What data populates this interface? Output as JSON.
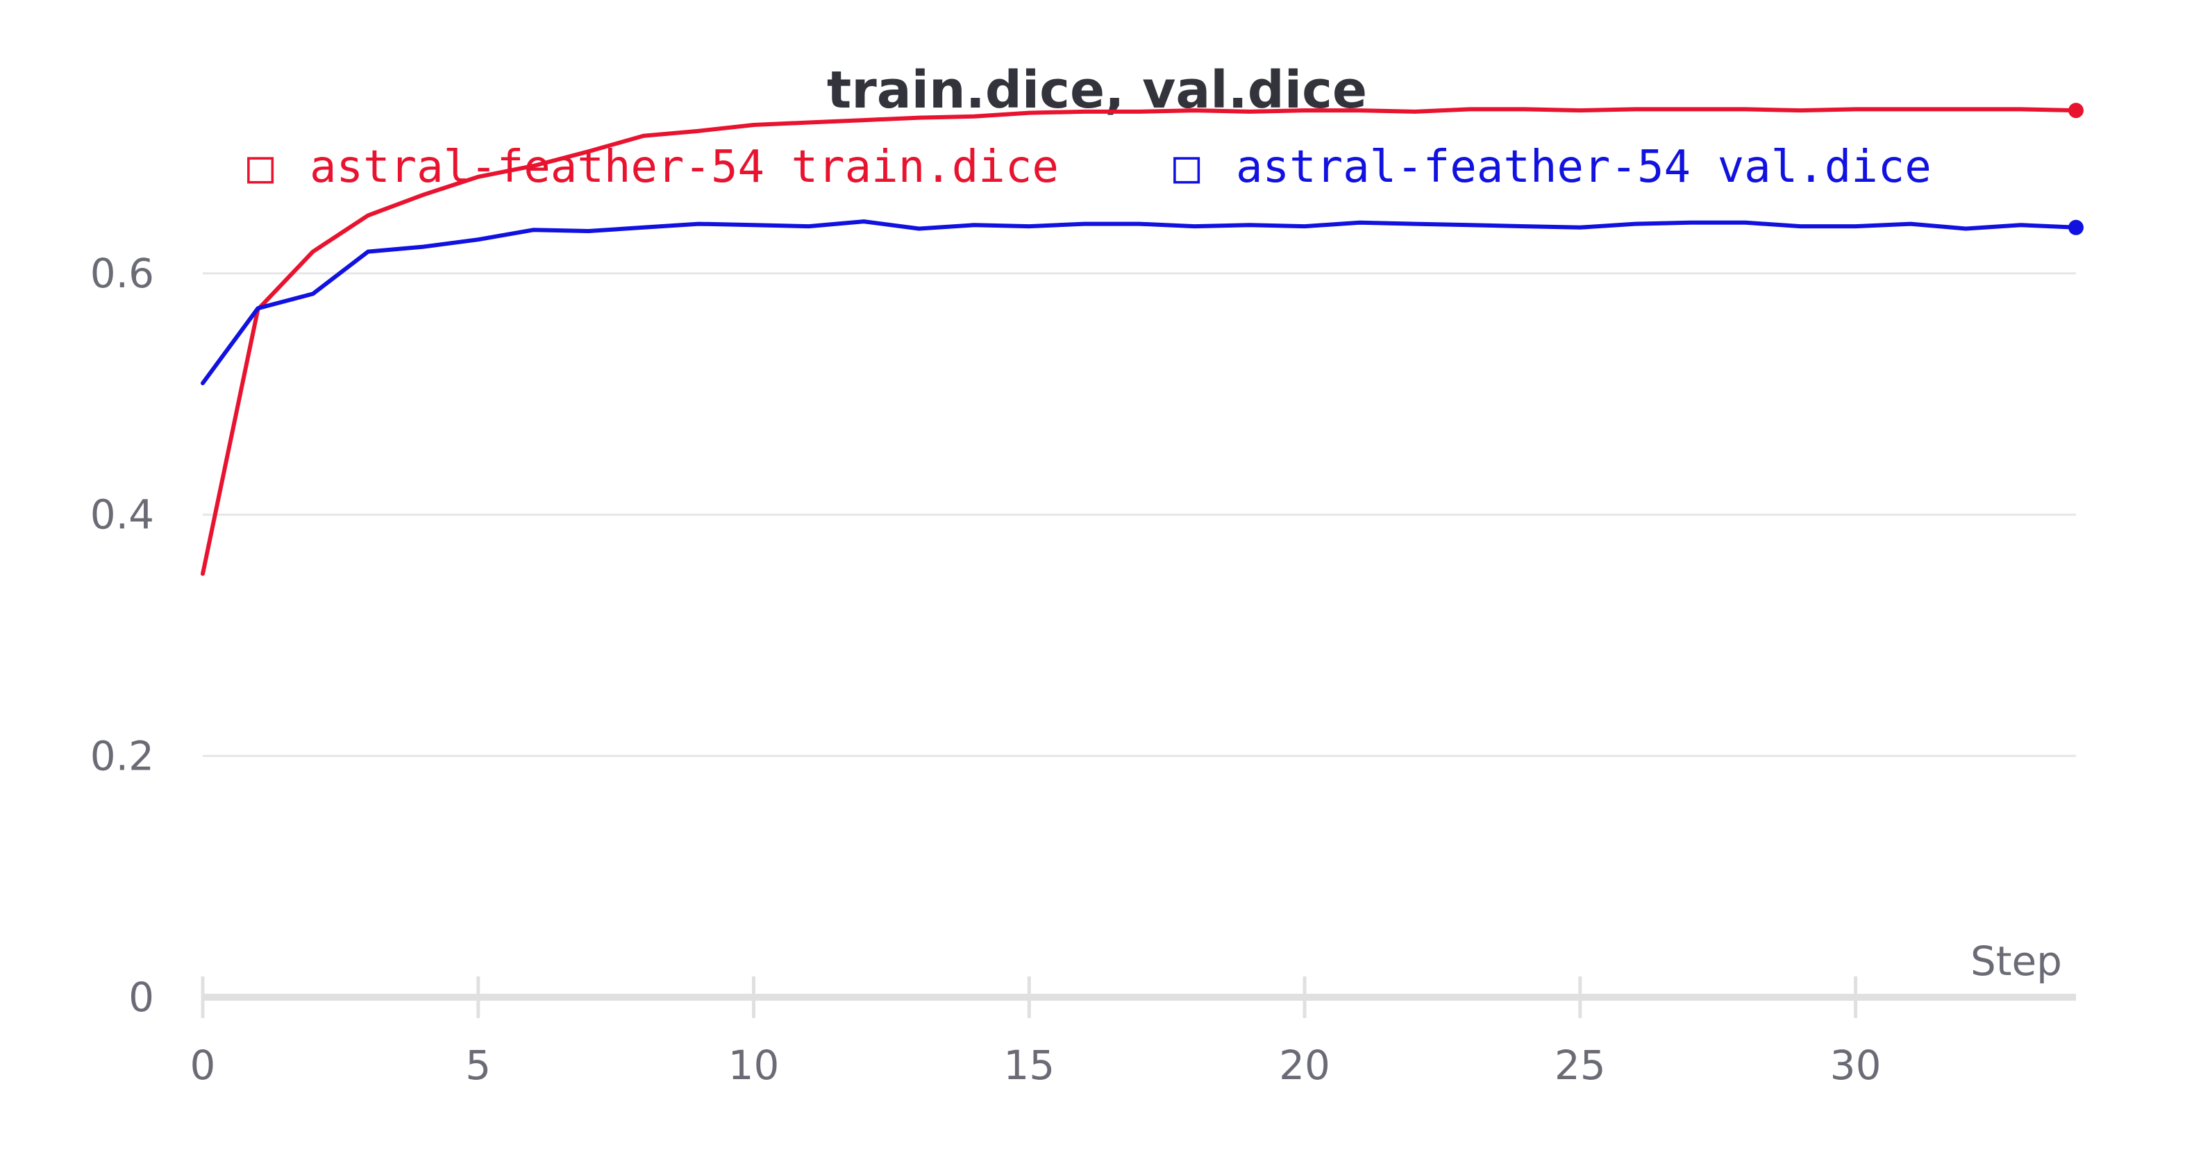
{
  "chart_data": {
    "type": "line",
    "title": "train.dice, val.dice",
    "xlabel": "Step",
    "ylabel": "",
    "xlim": [
      0,
      34
    ],
    "ylim": [
      0,
      0.7
    ],
    "xticks": [
      0,
      5,
      10,
      15,
      20,
      25,
      30
    ],
    "xtick_labels": [
      "0",
      "5",
      "10",
      "15",
      "20",
      "25",
      "30"
    ],
    "yticks": [
      0,
      0.2,
      0.4,
      0.6
    ],
    "ytick_labels": [
      "0",
      "0.2",
      "0.4",
      "0.6"
    ],
    "grid": true,
    "legend_position": "top",
    "legend_marker": "□",
    "x": [
      0,
      1,
      2,
      3,
      4,
      5,
      6,
      7,
      8,
      9,
      10,
      11,
      12,
      13,
      14,
      15,
      16,
      17,
      18,
      19,
      20,
      21,
      22,
      23,
      24,
      25,
      26,
      27,
      28,
      29,
      30,
      31,
      32,
      33,
      34
    ],
    "series": [
      {
        "name": "astral-feather-54 train.dice",
        "color": "#e8132f",
        "values": [
          0.351,
          0.57,
          0.618,
          0.648,
          0.665,
          0.68,
          0.689,
          0.701,
          0.714,
          0.718,
          0.723,
          0.725,
          0.727,
          0.729,
          0.73,
          0.733,
          0.734,
          0.734,
          0.735,
          0.734,
          0.735,
          0.735,
          0.734,
          0.736,
          0.736,
          0.735,
          0.736,
          0.736,
          0.736,
          0.735,
          0.736,
          0.736,
          0.736,
          0.736,
          0.735
        ]
      },
      {
        "name": "astral-feather-54 val.dice",
        "color": "#1111e0",
        "values": [
          0.509,
          0.571,
          0.583,
          0.618,
          0.622,
          0.628,
          0.636,
          0.635,
          0.638,
          0.641,
          0.64,
          0.639,
          0.643,
          0.637,
          0.64,
          0.639,
          0.641,
          0.641,
          0.639,
          0.64,
          0.639,
          0.642,
          0.641,
          0.64,
          0.639,
          0.638,
          0.641,
          0.642,
          0.642,
          0.639,
          0.639,
          0.641,
          0.637,
          0.64,
          0.638
        ]
      }
    ]
  }
}
